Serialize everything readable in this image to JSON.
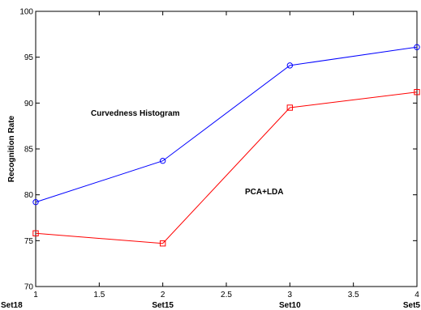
{
  "chart_data": {
    "type": "line",
    "ylabel": "Recognition Rate",
    "xlim": [
      1,
      4
    ],
    "ylim": [
      70,
      100
    ],
    "x_ticks": [
      1,
      1.5,
      2,
      2.5,
      3,
      3.5,
      4
    ],
    "x_tick_labels": [
      "1",
      "1.5",
      "2",
      "2.5",
      "3",
      "3.5",
      "4"
    ],
    "y_ticks": [
      70,
      75,
      80,
      85,
      90,
      95,
      100
    ],
    "y_tick_labels": [
      "70",
      "75",
      "80",
      "85",
      "90",
      "95",
      "100"
    ],
    "categories": [
      "Set18",
      "Set15",
      "Set10",
      "Set5"
    ],
    "x": [
      1,
      2,
      3,
      4
    ],
    "series": [
      {
        "name": "Curvedness Histogram",
        "color": "#0000ff",
        "marker": "circle",
        "values": [
          79.2,
          83.7,
          94.1,
          96.1
        ]
      },
      {
        "name": "PCA+LDA",
        "color": "#ff0000",
        "marker": "square",
        "values": [
          75.8,
          74.7,
          89.5,
          91.2
        ]
      }
    ],
    "annotations": [
      "Curvedness Histogram",
      "PCA+LDA"
    ],
    "grid": false,
    "legend": "none"
  }
}
